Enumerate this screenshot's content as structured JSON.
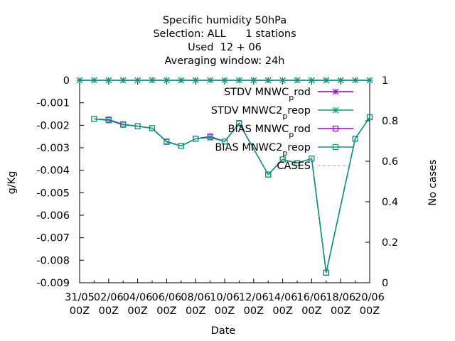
{
  "chart_data": {
    "type": "line",
    "title_lines": [
      "Specific humidity 50hPa",
      "Selection: ALL      1 stations",
      "Used  12 + 06",
      "Averaging window: 24h"
    ],
    "xlabel": "Date",
    "ylabel": "g/Kg",
    "y2label": "No cases",
    "ylim": [
      -0.009,
      0
    ],
    "y2lim": [
      0,
      1
    ],
    "yticks": [
      "0",
      "-0.001",
      "-0.002",
      "-0.003",
      "-0.004",
      "-0.005",
      "-0.006",
      "-0.007",
      "-0.008",
      "-0.009"
    ],
    "y2ticks": [
      "0",
      "0.2",
      "0.4",
      "0.6",
      "0.8",
      "1"
    ],
    "x_day_range": [
      0,
      20
    ],
    "xticks": [
      {
        "day": 0,
        "date": "31/05",
        "hour": "00Z"
      },
      {
        "day": 2,
        "date": "02/06",
        "hour": "00Z"
      },
      {
        "day": 4,
        "date": "04/06",
        "hour": "00Z"
      },
      {
        "day": 6,
        "date": "06/06",
        "hour": "00Z"
      },
      {
        "day": 8,
        "date": "08/06",
        "hour": "00Z"
      },
      {
        "day": 10,
        "date": "10/06",
        "hour": "00Z"
      },
      {
        "day": 12,
        "date": "12/06",
        "hour": "00Z"
      },
      {
        "day": 14,
        "date": "14/06",
        "hour": "00Z"
      },
      {
        "day": 16,
        "date": "16/06",
        "hour": "00Z"
      },
      {
        "day": 18,
        "date": "18/06",
        "hour": "00Z"
      },
      {
        "day": 20,
        "date": "20/06",
        "hour": "00Z"
      }
    ],
    "grid": false,
    "legend_position": "top-right",
    "series": [
      {
        "name": "STDV MNWC_prod",
        "label_main": "STDV MNWC",
        "label_sub": "p",
        "label_tail": "rod",
        "color": "#9400d3",
        "marker": "star",
        "axis": "y",
        "x": [
          0,
          1,
          2,
          3,
          4,
          5,
          6,
          7,
          8,
          9,
          10,
          11,
          12,
          13,
          14,
          15,
          16,
          17,
          18,
          19,
          20
        ],
        "values": [
          0,
          0,
          0,
          0,
          0,
          0,
          0,
          0,
          0,
          0,
          0,
          0,
          0,
          0,
          0,
          0,
          0,
          0,
          0,
          0,
          0
        ]
      },
      {
        "name": "STDV MNWC2_preop",
        "label_main": "STDV MNWC2",
        "label_sub": "p",
        "label_tail": "reop",
        "color": "#009e73",
        "marker": "star",
        "axis": "y",
        "x": [
          0,
          1,
          2,
          3,
          4,
          5,
          6,
          7,
          8,
          9,
          10,
          11,
          12,
          13,
          14,
          15,
          16,
          17,
          18,
          19,
          20
        ],
        "values": [
          0,
          0,
          0,
          0,
          0,
          0,
          0,
          0,
          0,
          0,
          0,
          0,
          0,
          0,
          0,
          0,
          0,
          0,
          0,
          0,
          0
        ]
      },
      {
        "name": "BIAS MNWC_prod",
        "label_main": "BIAS MNWC",
        "label_sub": "p",
        "label_tail": "rod",
        "color": "#9400d3",
        "marker": "square",
        "axis": "y",
        "x": [
          1,
          2,
          3,
          4,
          5,
          6,
          7,
          8,
          9,
          10,
          11,
          13,
          14,
          15,
          16,
          17,
          19,
          20
        ],
        "values": [
          -0.00172,
          -0.00175,
          -0.00196,
          -0.00204,
          -0.00213,
          -0.00272,
          -0.00292,
          -0.0026,
          -0.0025,
          -0.00272,
          -0.00192,
          -0.00419,
          -0.00352,
          -0.00368,
          -0.00348,
          -0.00855,
          -0.0026,
          -0.00164
        ]
      },
      {
        "name": "BIAS MNWC2_preop",
        "label_main": "BIAS MNWC2",
        "label_sub": "p",
        "label_tail": "reop",
        "color": "#009e73",
        "marker": "square",
        "axis": "y",
        "x": [
          1,
          2,
          3,
          4,
          5,
          6,
          7,
          8,
          9,
          10,
          11,
          13,
          14,
          15,
          16,
          17,
          19,
          20
        ],
        "values": [
          -0.00172,
          -0.00178,
          -0.00198,
          -0.00204,
          -0.00213,
          -0.00274,
          -0.00292,
          -0.0026,
          -0.00254,
          -0.00272,
          -0.0019,
          -0.00419,
          -0.00352,
          -0.00368,
          -0.00348,
          -0.00856,
          -0.0026,
          -0.00164
        ]
      },
      {
        "name": "CASES",
        "label_main": "CASES",
        "label_sub": "",
        "label_tail": "",
        "color": "#a0a0a0",
        "marker": "none",
        "axis": "y2",
        "dashed": true,
        "x": [],
        "values": []
      }
    ]
  }
}
